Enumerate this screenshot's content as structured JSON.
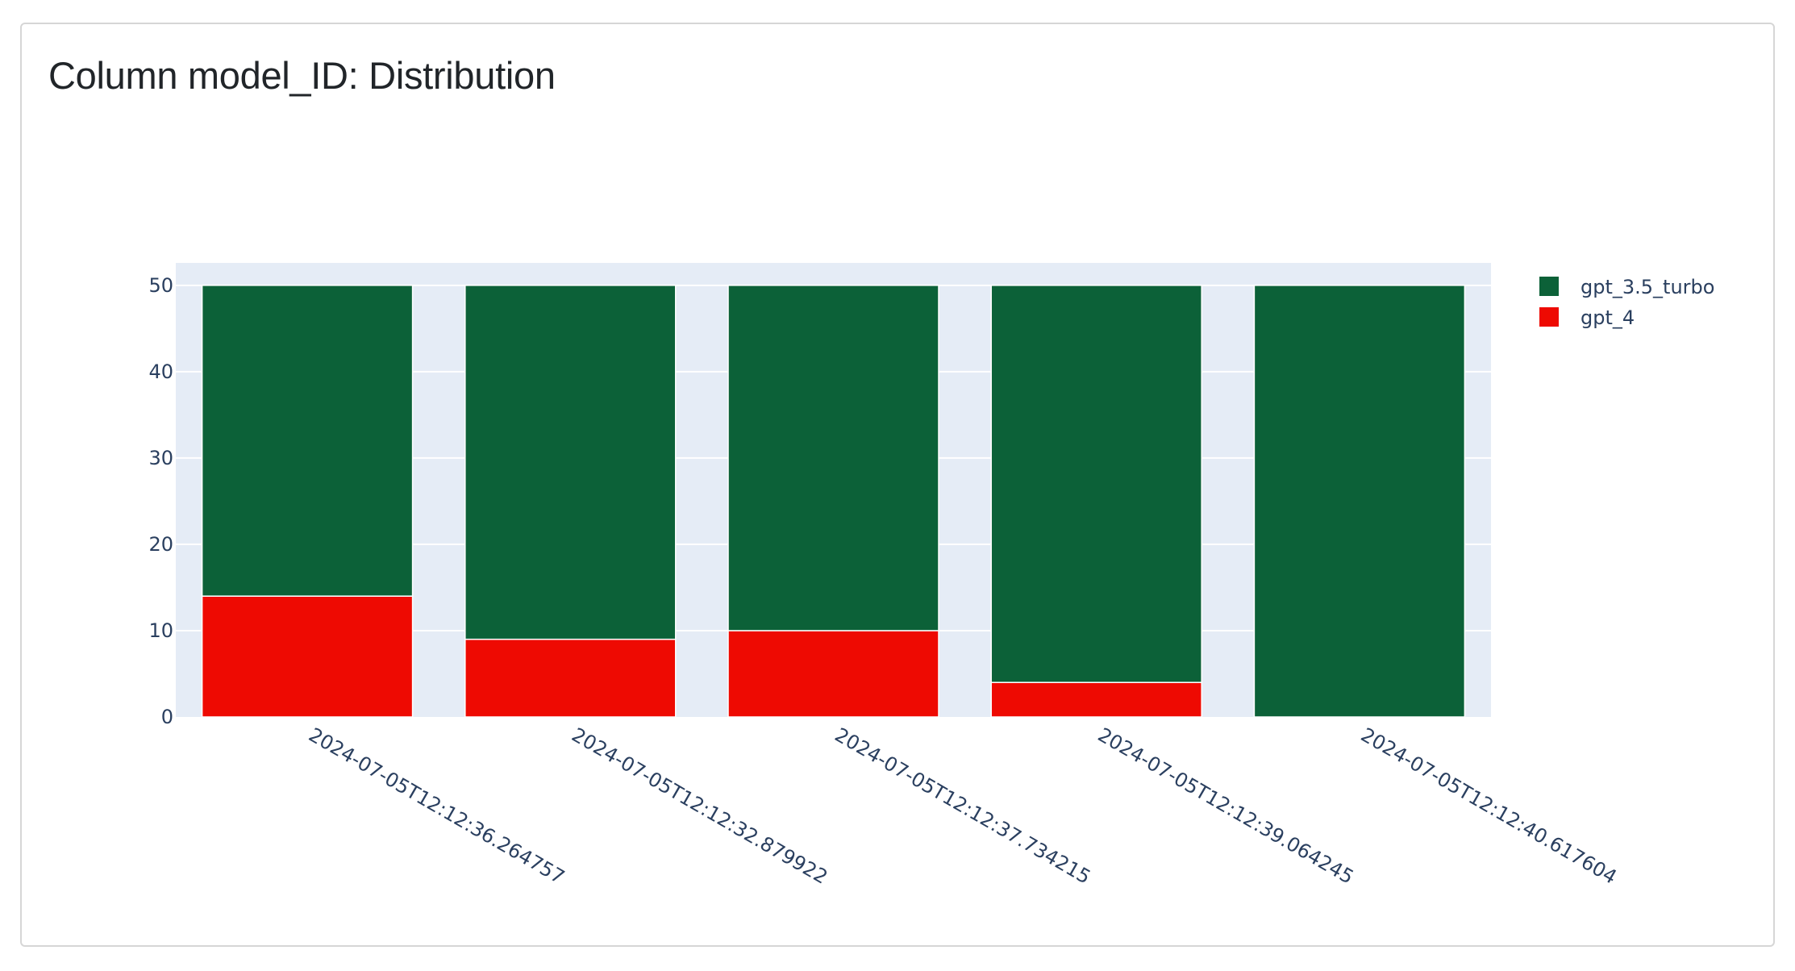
{
  "card": {
    "title": "Column model_ID: Distribution"
  },
  "chart_data": {
    "type": "bar",
    "barmode": "stack",
    "categories": [
      "2024-07-05T12:12:36.264757",
      "2024-07-05T12:12:32.879922",
      "2024-07-05T12:12:37.734215",
      "2024-07-05T12:12:39.064245",
      "2024-07-05T12:12:40.617604"
    ],
    "series": [
      {
        "name": "gpt_4",
        "color": "#ee0a02",
        "values": [
          14,
          9,
          10,
          4,
          0
        ]
      },
      {
        "name": "gpt_3.5_turbo",
        "color": "#0c6138",
        "values": [
          36,
          41,
          40,
          46,
          50
        ]
      }
    ],
    "legend_order": [
      "gpt_3.5_turbo",
      "gpt_4"
    ],
    "ylim": [
      0,
      52.6
    ],
    "yticks": [
      0,
      10,
      20,
      30,
      40,
      50
    ],
    "grid": true,
    "legend_position": "top-right",
    "plot_background": "#e5ecf6",
    "x_tick_rotation": 30
  }
}
